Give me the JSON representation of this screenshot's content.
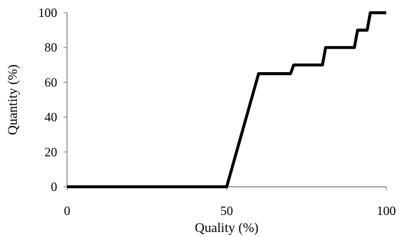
{
  "chart_data": {
    "type": "line",
    "title": "",
    "xlabel": "Quality (%)",
    "ylabel": "Quantity (%)",
    "xlim": [
      0,
      100
    ],
    "ylim": [
      0,
      100
    ],
    "x_ticks": [
      0,
      50,
      100
    ],
    "y_ticks": [
      0,
      20,
      40,
      60,
      80,
      100
    ],
    "grid": false,
    "legend": "none",
    "series": [
      {
        "color": "#000000",
        "x": [
          0,
          50,
          60,
          70,
          71,
          80,
          81,
          90,
          91,
          94,
          95,
          100
        ],
        "y": [
          0,
          0,
          65,
          65,
          70,
          70,
          80,
          80,
          90,
          90,
          100,
          100
        ]
      }
    ]
  }
}
